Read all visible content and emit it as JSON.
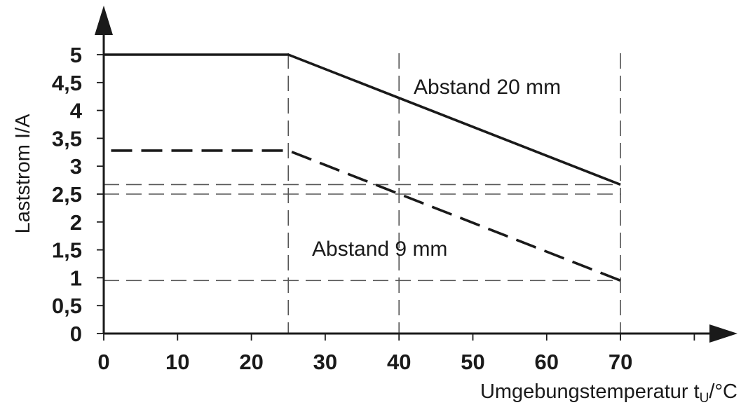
{
  "chart_data": {
    "type": "line",
    "xlabel": "Umgebungstemperatur t",
    "xlabel_sub": "U",
    "xlabel_unit": "/°C",
    "ylabel": "Laststrom I/A",
    "xlim": [
      0,
      80
    ],
    "ylim": [
      0,
      5
    ],
    "x_ticks": [
      "0",
      "10",
      "20",
      "30",
      "40",
      "50",
      "60",
      "70"
    ],
    "y_ticks": [
      "0",
      "0,5",
      "1",
      "1,5",
      "2",
      "2,5",
      "3",
      "3,5",
      "4",
      "4,5",
      "5"
    ],
    "series": [
      {
        "name": "Abstand 20 mm",
        "style": "solid",
        "x": [
          0,
          25,
          70
        ],
        "y": [
          5,
          5,
          2.67
        ]
      },
      {
        "name": "Abstand 9 mm",
        "style": "dashed",
        "x": [
          1,
          25,
          70
        ],
        "y": [
          3.28,
          3.28,
          0.95
        ]
      }
    ],
    "reference_lines": [
      {
        "orientation": "vertical",
        "x": 25
      },
      {
        "orientation": "vertical",
        "x": 40
      },
      {
        "orientation": "vertical",
        "x": 70
      },
      {
        "orientation": "horizontal",
        "y": 2.67
      },
      {
        "orientation": "horizontal",
        "y": 2.5
      },
      {
        "orientation": "horizontal",
        "y": 0.95
      }
    ],
    "colors": {
      "line": "#1a1a1a",
      "reference": "#555555"
    }
  }
}
